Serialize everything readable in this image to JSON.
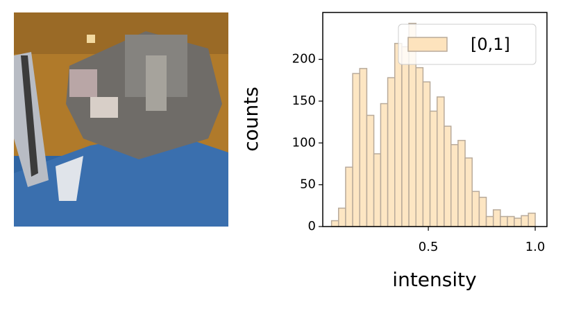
{
  "chart_data": {
    "type": "histogram",
    "xlabel": "intensity",
    "ylabel": "counts",
    "bins": [
      0.047,
      0.08,
      0.113,
      0.146,
      0.179,
      0.212,
      0.245,
      0.277,
      0.31,
      0.343,
      0.376,
      0.409,
      0.442,
      0.475,
      0.508,
      0.541,
      0.574,
      0.606,
      0.639,
      0.672,
      0.705,
      0.738,
      0.771,
      0.804,
      0.837,
      0.87,
      0.902,
      0.935,
      0.968,
      1.0
    ],
    "series": [
      {
        "name": "[0,1]",
        "color": "#fde3bd",
        "edgecolor": "#b8aa9a",
        "values": [
          7,
          22,
          71,
          183,
          189,
          133,
          87,
          147,
          178,
          219,
          215,
          243,
          190,
          173,
          138,
          155,
          120,
          98,
          103,
          82,
          42,
          35,
          12,
          20,
          12,
          12,
          10,
          13,
          16
        ]
      }
    ],
    "xlim": [
      0.006,
      1.055
    ],
    "ylim": [
      0,
      256
    ],
    "xticks": [
      0.5,
      {
        "value": 1,
        "label": "1.0"
      }
    ],
    "yticks": [
      0,
      50,
      100,
      150,
      200
    ],
    "legend": "upper right"
  }
}
